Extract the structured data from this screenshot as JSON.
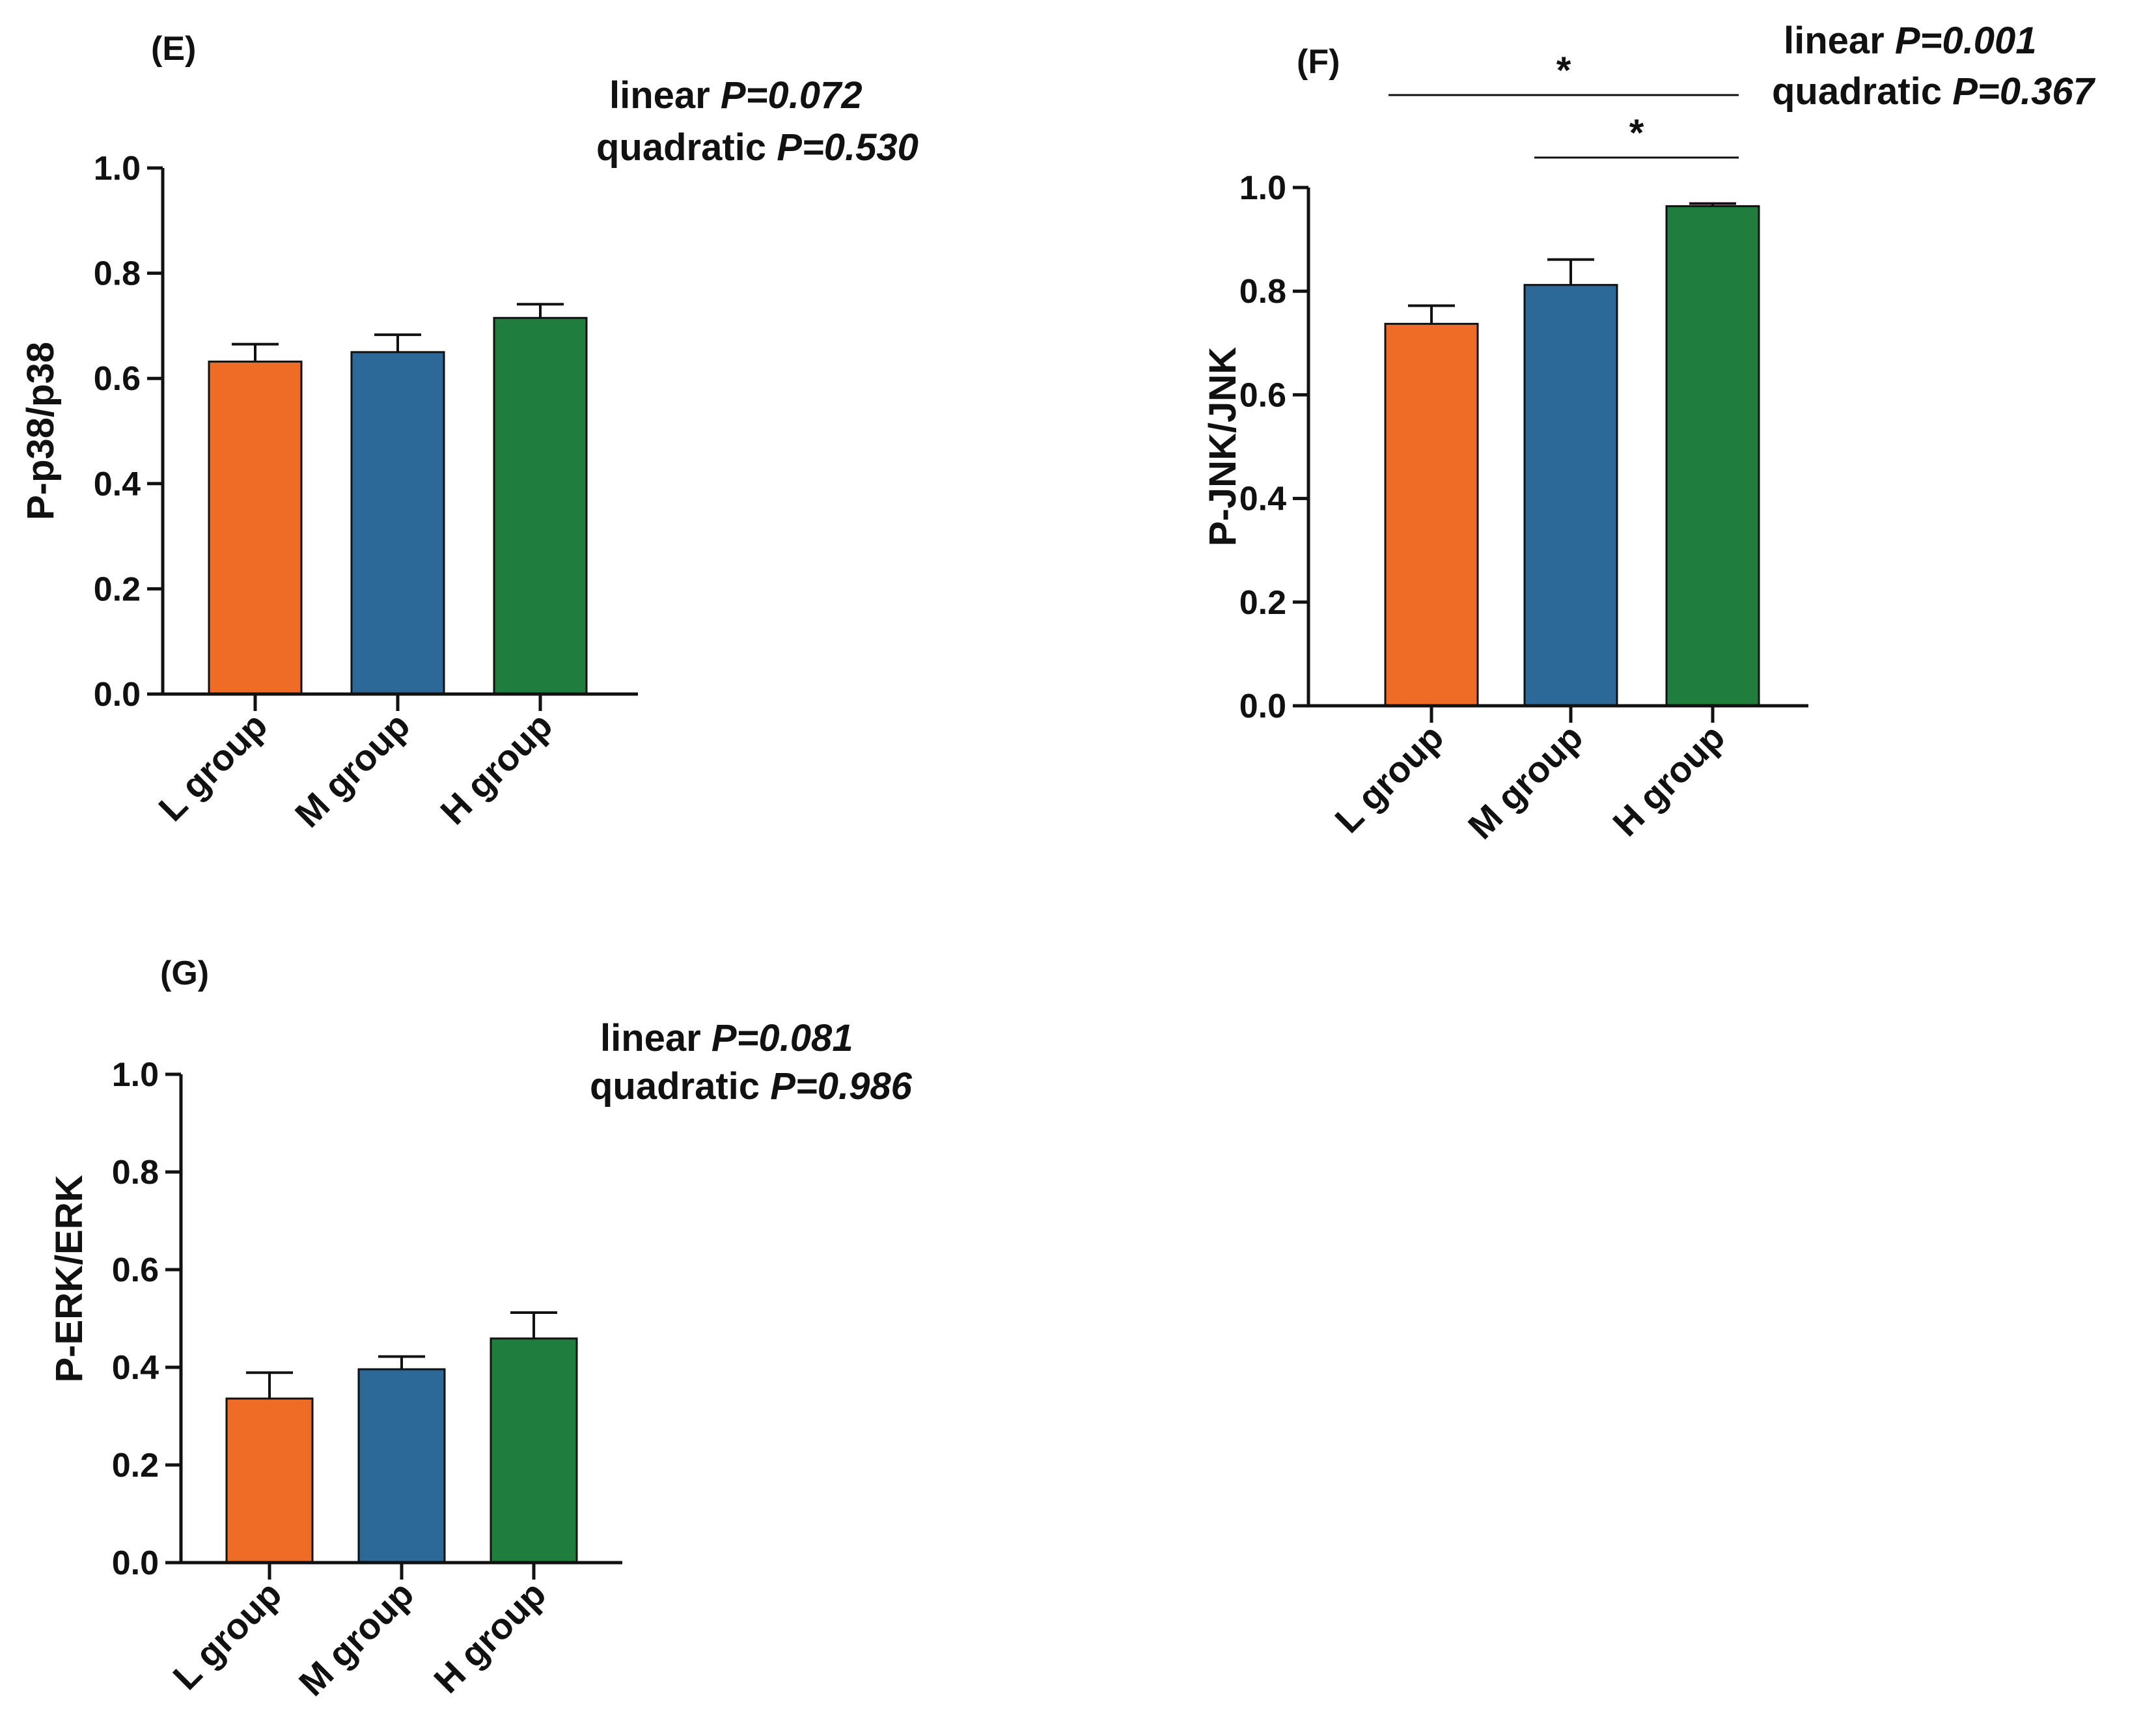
{
  "chart_data": [
    {
      "type": "bar",
      "panel": "(E)",
      "categories": [
        "L group",
        "M group",
        "H group"
      ],
      "values": [
        0.632,
        0.65,
        0.715
      ],
      "errors": [
        0.033,
        0.033,
        0.026
      ],
      "ylabel": "P-p38/p38",
      "ylim": [
        0,
        1.0
      ],
      "yticks": [
        "0.0",
        "0.2",
        "0.4",
        "0.6",
        "0.8",
        "1.0"
      ],
      "stats": {
        "linear_label": "linear",
        "linear_p": "P=0.072",
        "quadratic_label": "quadratic",
        "quadratic_p": "P=0.530"
      },
      "significance": []
    },
    {
      "type": "bar",
      "panel": "(F)",
      "categories": [
        "L group",
        "M group",
        "H group"
      ],
      "values": [
        0.737,
        0.812,
        0.964
      ],
      "errors": [
        0.035,
        0.049,
        0.005
      ],
      "ylabel": "P-JNK/JNK",
      "ylim": [
        0,
        1.0
      ],
      "yticks": [
        "0.0",
        "0.2",
        "0.4",
        "0.6",
        "0.8",
        "1.0"
      ],
      "stats": {
        "linear_label": "linear",
        "linear_p": "P=0.001",
        "quadratic_label": "quadratic",
        "quadratic_p": "P=0.367"
      },
      "significance": [
        {
          "from": "L group",
          "to": "H group",
          "label": "*"
        },
        {
          "from": "M group",
          "to": "H group",
          "label": "*"
        }
      ]
    },
    {
      "type": "bar",
      "panel": "(G)",
      "categories": [
        "L group",
        "M group",
        "H group"
      ],
      "values": [
        0.336,
        0.396,
        0.459
      ],
      "errors": [
        0.053,
        0.026,
        0.053
      ],
      "ylabel": "P-ERK/ERK",
      "ylim": [
        0,
        1.0
      ],
      "yticks": [
        "0.0",
        "0.2",
        "0.4",
        "0.6",
        "0.8",
        "1.0"
      ],
      "stats": {
        "linear_label": "linear",
        "linear_p": "P=0.081",
        "quadratic_label": "quadratic",
        "quadratic_p": "P=0.986"
      },
      "significance": []
    }
  ],
  "colors": {
    "bars": [
      "#ee6c25",
      "#2c6898",
      "#1f7d3e"
    ],
    "axis": "#111111"
  }
}
